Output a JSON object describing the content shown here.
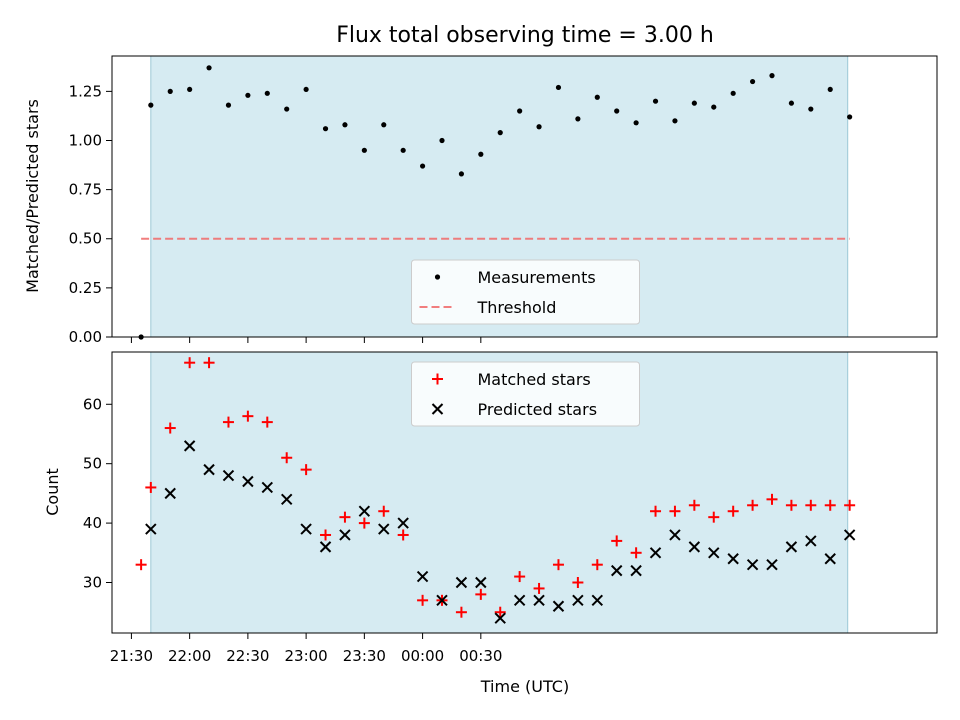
{
  "chart_data": [
    {
      "type": "scatter",
      "title": "Flux total observing time = 3.00 h",
      "xlabel": "",
      "ylabel": "Matched/Predicted stars",
      "ylim": [
        0,
        1.43
      ],
      "yticks": [
        "0.00",
        "0.25",
        "0.50",
        "0.75",
        "1.00",
        "1.25"
      ],
      "ytick_values": [
        0,
        0.25,
        0.5,
        0.75,
        1.0,
        1.25
      ],
      "xrange_minutes": [
        1280,
        1705
      ],
      "shaded_range_minutes": [
        1300,
        1659
      ],
      "legend_position": "lower-center",
      "series": [
        {
          "name": "Measurements",
          "marker": "dot",
          "color": "#000000",
          "x": [
            1295,
            1300,
            1310,
            1320,
            1330,
            1340,
            1350,
            1360,
            1370,
            1380,
            1390,
            1400,
            1410,
            1420,
            1430,
            1440,
            1450,
            1460,
            1470,
            1480,
            1490,
            1500,
            1510,
            1520,
            1530,
            1540,
            1550,
            1560,
            1570,
            1580,
            1590,
            1600,
            1610,
            1620,
            1630,
            1640,
            1650,
            1660
          ],
          "y": [
            0.0,
            1.18,
            1.25,
            1.26,
            1.37,
            1.18,
            1.23,
            1.24,
            1.16,
            1.26,
            1.06,
            1.08,
            0.95,
            1.08,
            0.95,
            0.87,
            1.0,
            0.83,
            0.93,
            1.04,
            1.15,
            1.07,
            1.27,
            1.11,
            1.22,
            1.15,
            1.09,
            1.2,
            1.1,
            1.19,
            1.17,
            1.24,
            1.3,
            1.33,
            1.19,
            1.16,
            1.26,
            1.12
          ]
        },
        {
          "name": "Threshold",
          "marker": "dashed-line",
          "color": "#f07070",
          "x": [
            1295,
            1660
          ],
          "y": [
            0.5,
            0.5
          ]
        }
      ]
    },
    {
      "type": "scatter",
      "title": "",
      "xlabel": "Time (UTC)",
      "ylabel": "Count",
      "ylim": [
        21.5,
        68.8
      ],
      "yticks": [
        "30",
        "40",
        "50",
        "60"
      ],
      "ytick_values": [
        30,
        40,
        50,
        60
      ],
      "xticks": [
        "21:30",
        "22:00",
        "22:30",
        "23:00",
        "23:30",
        "00:00",
        "00:30"
      ],
      "xtick_values": [
        1290,
        1320,
        1350,
        1380,
        1410,
        1440,
        1470
      ],
      "xrange_minutes": [
        1280,
        1705
      ],
      "shaded_range_minutes": [
        1300,
        1659
      ],
      "legend_position": "top-center",
      "series": [
        {
          "name": "Matched stars",
          "marker": "plus",
          "color": "#ff0000",
          "x": [
            1295,
            1300,
            1310,
            1320,
            1330,
            1340,
            1350,
            1360,
            1370,
            1380,
            1390,
            1400,
            1410,
            1420,
            1430,
            1440,
            1450,
            1460,
            1470,
            1480,
            1490,
            1500,
            1510,
            1520,
            1530,
            1540,
            1550,
            1560,
            1570,
            1580,
            1590,
            1600,
            1610,
            1620,
            1630,
            1640,
            1650,
            1660
          ],
          "y": [
            33,
            46,
            56,
            67,
            67,
            57,
            58,
            57,
            51,
            49,
            38,
            41,
            40,
            42,
            38,
            27,
            27,
            25,
            28,
            25,
            31,
            29,
            33,
            30,
            33,
            37,
            35,
            42,
            42,
            43,
            41,
            42,
            43,
            44,
            43,
            43,
            43,
            43
          ]
        },
        {
          "name": "Predicted stars",
          "marker": "x",
          "color": "#000000",
          "x": [
            1300,
            1310,
            1320,
            1330,
            1340,
            1350,
            1360,
            1370,
            1380,
            1390,
            1400,
            1410,
            1420,
            1430,
            1440,
            1450,
            1460,
            1470,
            1480,
            1490,
            1500,
            1510,
            1520,
            1530,
            1540,
            1550,
            1560,
            1570,
            1580,
            1590,
            1600,
            1610,
            1620,
            1630,
            1640,
            1650,
            1660
          ],
          "y": [
            39,
            45,
            53,
            49,
            48,
            47,
            46,
            44,
            39,
            36,
            38,
            42,
            39,
            40,
            31,
            27,
            30,
            30,
            24,
            27,
            27,
            26,
            27,
            27,
            32,
            32,
            35,
            38,
            36,
            35,
            34,
            33,
            33,
            36,
            37,
            34,
            38
          ]
        }
      ]
    }
  ]
}
